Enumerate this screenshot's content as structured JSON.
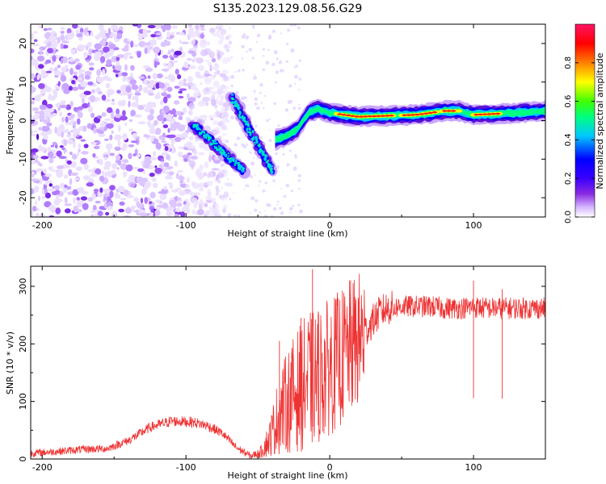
{
  "figure_title": "S135.2023.129.08.56.G29",
  "chart_data": [
    {
      "type": "heatmap",
      "xlabel": "Height of straight line (km)",
      "ylabel": "Frequency (Hz)",
      "xlim": [
        -208,
        150
      ],
      "ylim": [
        -25,
        25
      ],
      "x_ticks": [
        -200,
        -100,
        0,
        100
      ],
      "y_ticks": [
        -20,
        -10,
        0,
        10,
        20
      ],
      "colorbar": {
        "label": "Normalized spectral amplitude",
        "range": [
          0,
          1
        ],
        "ticks": [
          0.0,
          0.2,
          0.4,
          0.6,
          0.8
        ],
        "tick_labels": [
          "0.0",
          "0.2",
          "0.4",
          "0.6",
          "0.8"
        ],
        "colors": [
          "#ffffff",
          "#d6b8ff",
          "#8a2be2",
          "#3b00ff",
          "#0000ff",
          "#00c8ff",
          "#00ff80",
          "#40ff00",
          "#ffff00",
          "#ff8000",
          "#ff0000",
          "#ff1464"
        ]
      },
      "features": {
        "noise_region_x": [
          -208,
          -80
        ],
        "tilted_track_1": {
          "x": [
            -95,
            -60
          ],
          "y": [
            -1,
            -13
          ]
        },
        "tilted_track_2": {
          "x": [
            -68,
            -40
          ],
          "y": [
            6,
            -13
          ]
        },
        "band_center_hz": [
          [
            -38,
            -5
          ],
          [
            -30,
            -4
          ],
          [
            -22,
            -2
          ],
          [
            -15,
            2
          ],
          [
            -8,
            3
          ],
          [
            0,
            2
          ],
          [
            20,
            1
          ],
          [
            60,
            1.5
          ],
          [
            80,
            2.5
          ],
          [
            90,
            2.5
          ],
          [
            100,
            1.5
          ],
          [
            130,
            2
          ],
          [
            150,
            2.5
          ]
        ],
        "peak_segments_x": [
          [
            5,
            45
          ],
          [
            50,
            75
          ],
          [
            78,
            90
          ],
          [
            100,
            120
          ]
        ]
      }
    },
    {
      "type": "line",
      "xlabel": "Height of straight line (km)",
      "ylabel": "SNR (10 * v/v)",
      "xlim": [
        -208,
        150
      ],
      "ylim": [
        0,
        335
      ],
      "x_ticks": [
        -200,
        -100,
        0,
        100
      ],
      "y_ticks": [
        0,
        100,
        200,
        300
      ],
      "line_color": "#ee3333",
      "envelope": {
        "x": [
          -208,
          -190,
          -170,
          -155,
          -140,
          -125,
          -110,
          -95,
          -85,
          -75,
          -65,
          -55,
          -48,
          -42,
          -35,
          -28,
          -20,
          -12,
          -5,
          0,
          5,
          10,
          15,
          20,
          25,
          30,
          35,
          40,
          50,
          60,
          70,
          80,
          90,
          100,
          110,
          120,
          130,
          140,
          150
        ],
        "y": [
          10,
          13,
          17,
          18,
          32,
          55,
          66,
          64,
          58,
          45,
          20,
          5,
          12,
          35,
          80,
          105,
          125,
          140,
          150,
          160,
          170,
          180,
          195,
          205,
          222,
          240,
          255,
          262,
          265,
          265,
          265,
          262,
          262,
          264,
          262,
          262,
          262,
          262,
          262
        ]
      },
      "spikes": [
        {
          "x": -12,
          "y": 330
        },
        {
          "x": -20,
          "y": 245
        },
        {
          "x": -35,
          "y": 205
        },
        {
          "x": -8,
          "y": 250
        },
        {
          "x": 100,
          "y": 310
        },
        {
          "x": 120,
          "y": 295
        }
      ]
    }
  ]
}
